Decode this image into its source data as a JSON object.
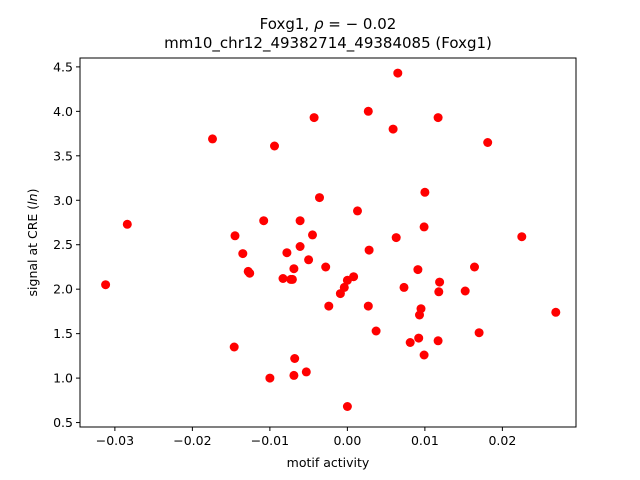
{
  "chart_data": {
    "type": "scatter",
    "title_line1": "Foxg1, ρ = − 0.02",
    "title_line2": "mm10_chr12_49382714_49384085 (Foxg1)",
    "xlabel": "motif activity",
    "ylabel": "signal at CRE (ln)",
    "xlim": [
      -0.0345,
      0.0295
    ],
    "ylim": [
      0.45,
      4.6
    ],
    "xticks": [
      -0.03,
      -0.02,
      -0.01,
      0.0,
      0.01,
      0.02
    ],
    "xtick_labels": [
      "−0.03",
      "−0.02",
      "−0.01",
      "0.00",
      "0.01",
      "0.02"
    ],
    "yticks": [
      0.5,
      1.0,
      1.5,
      2.0,
      2.5,
      3.0,
      3.5,
      4.0,
      4.5
    ],
    "ytick_labels": [
      "0.5",
      "1.0",
      "1.5",
      "2.0",
      "2.5",
      "3.0",
      "3.5",
      "4.0",
      "4.5"
    ],
    "marker_color": "#ff0000",
    "points": [
      {
        "x": 0.0065,
        "y": 4.43
      },
      {
        "x": 0.0027,
        "y": 4.0
      },
      {
        "x": -0.0043,
        "y": 3.93
      },
      {
        "x": 0.0117,
        "y": 3.93
      },
      {
        "x": 0.0059,
        "y": 3.8
      },
      {
        "x": -0.0174,
        "y": 3.69
      },
      {
        "x": -0.0094,
        "y": 3.61
      },
      {
        "x": 0.0181,
        "y": 3.65
      },
      {
        "x": 0.01,
        "y": 3.09
      },
      {
        "x": -0.0036,
        "y": 3.03
      },
      {
        "x": 0.0013,
        "y": 2.88
      },
      {
        "x": -0.0108,
        "y": 2.77
      },
      {
        "x": -0.0061,
        "y": 2.77
      },
      {
        "x": -0.0284,
        "y": 2.73
      },
      {
        "x": 0.0099,
        "y": 2.7
      },
      {
        "x": -0.0145,
        "y": 2.6
      },
      {
        "x": -0.0045,
        "y": 2.61
      },
      {
        "x": 0.0063,
        "y": 2.58
      },
      {
        "x": 0.0225,
        "y": 2.59
      },
      {
        "x": -0.0061,
        "y": 2.48
      },
      {
        "x": 0.0028,
        "y": 2.44
      },
      {
        "x": -0.0135,
        "y": 2.4
      },
      {
        "x": -0.0078,
        "y": 2.41
      },
      {
        "x": -0.005,
        "y": 2.33
      },
      {
        "x": -0.0128,
        "y": 2.2
      },
      {
        "x": -0.0126,
        "y": 2.18
      },
      {
        "x": -0.0069,
        "y": 2.23
      },
      {
        "x": -0.0028,
        "y": 2.25
      },
      {
        "x": 0.0091,
        "y": 2.22
      },
      {
        "x": 0.0164,
        "y": 2.25
      },
      {
        "x": -0.0083,
        "y": 2.12
      },
      {
        "x": -0.0073,
        "y": 2.11
      },
      {
        "x": -0.0071,
        "y": 2.11
      },
      {
        "x": 0.0008,
        "y": 2.14
      },
      {
        "x": 0.0,
        "y": 2.1
      },
      {
        "x": 0.0119,
        "y": 2.08
      },
      {
        "x": -0.0312,
        "y": 2.05
      },
      {
        "x": -0.0004,
        "y": 2.02
      },
      {
        "x": 0.0073,
        "y": 2.02
      },
      {
        "x": -0.0009,
        "y": 1.95
      },
      {
        "x": 0.0118,
        "y": 1.97
      },
      {
        "x": 0.0152,
        "y": 1.98
      },
      {
        "x": -0.0024,
        "y": 1.81
      },
      {
        "x": 0.0027,
        "y": 1.81
      },
      {
        "x": 0.0095,
        "y": 1.78
      },
      {
        "x": 0.0093,
        "y": 1.71
      },
      {
        "x": 0.0269,
        "y": 1.74
      },
      {
        "x": 0.0037,
        "y": 1.53
      },
      {
        "x": 0.017,
        "y": 1.51
      },
      {
        "x": 0.0092,
        "y": 1.45
      },
      {
        "x": 0.0081,
        "y": 1.4
      },
      {
        "x": 0.0117,
        "y": 1.42
      },
      {
        "x": -0.0146,
        "y": 1.35
      },
      {
        "x": 0.0099,
        "y": 1.26
      },
      {
        "x": -0.0068,
        "y": 1.22
      },
      {
        "x": -0.0053,
        "y": 1.07
      },
      {
        "x": -0.0069,
        "y": 1.03
      },
      {
        "x": -0.01,
        "y": 1.0
      },
      {
        "x": 0.0,
        "y": 0.68
      }
    ]
  }
}
